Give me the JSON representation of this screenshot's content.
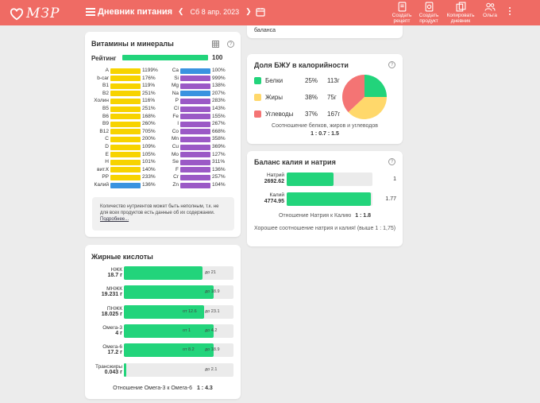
{
  "header": {
    "logo_text": "МЗР",
    "title": "Дневник питания",
    "date": "Сб 8 апр. 2023",
    "buttons": [
      {
        "label": "Создать рецепт"
      },
      {
        "label": "Создать продукт"
      },
      {
        "label": "Копировать дневник"
      },
      {
        "label": "Ольга"
      }
    ]
  },
  "colors": {
    "header": "#ef6b64",
    "green": "#22d47b",
    "yellow": "#f7d300",
    "purple": "#9b59c6",
    "blue": "#3a93e0"
  },
  "vitamins": {
    "title": "Витамины и минералы",
    "rating_label": "Рейтинг",
    "rating_value": "100",
    "left": [
      {
        "name": "A",
        "value": "1199%",
        "pct": 100,
        "color": "yellow"
      },
      {
        "name": "b-car",
        "value": "176%",
        "pct": 100,
        "color": "yellow"
      },
      {
        "name": "B1",
        "value": "119%",
        "pct": 100,
        "color": "yellow"
      },
      {
        "name": "B2",
        "value": "251%",
        "pct": 100,
        "color": "yellow"
      },
      {
        "name": "Холин",
        "value": "116%",
        "pct": 100,
        "color": "yellow"
      },
      {
        "name": "B5",
        "value": "251%",
        "pct": 100,
        "color": "yellow"
      },
      {
        "name": "B6",
        "value": "168%",
        "pct": 100,
        "color": "yellow"
      },
      {
        "name": "B9",
        "value": "260%",
        "pct": 100,
        "color": "yellow"
      },
      {
        "name": "B12",
        "value": "705%",
        "pct": 100,
        "color": "yellow"
      },
      {
        "name": "C",
        "value": "200%",
        "pct": 100,
        "color": "yellow"
      },
      {
        "name": "D",
        "value": "109%",
        "pct": 100,
        "color": "yellow"
      },
      {
        "name": "E",
        "value": "105%",
        "pct": 100,
        "color": "yellow"
      },
      {
        "name": "H",
        "value": "101%",
        "pct": 100,
        "color": "yellow"
      },
      {
        "name": "вит.К",
        "value": "140%",
        "pct": 100,
        "color": "yellow"
      },
      {
        "name": "PP",
        "value": "233%",
        "pct": 100,
        "color": "yellow"
      },
      {
        "name": "Калий",
        "value": "136%",
        "pct": 100,
        "color": "blue"
      }
    ],
    "right": [
      {
        "name": "Ca",
        "value": "100%",
        "pct": 100,
        "color": "blue"
      },
      {
        "name": "Si",
        "value": "999%",
        "pct": 100,
        "color": "purple"
      },
      {
        "name": "Mg",
        "value": "138%",
        "pct": 100,
        "color": "purple"
      },
      {
        "name": "Na",
        "value": "207%",
        "pct": 100,
        "color": "blue"
      },
      {
        "name": "P",
        "value": "283%",
        "pct": 100,
        "color": "purple"
      },
      {
        "name": "Cl",
        "value": "143%",
        "pct": 100,
        "color": "purple"
      },
      {
        "name": "Fe",
        "value": "155%",
        "pct": 100,
        "color": "purple"
      },
      {
        "name": "I",
        "value": "267%",
        "pct": 100,
        "color": "purple"
      },
      {
        "name": "Co",
        "value": "668%",
        "pct": 100,
        "color": "purple"
      },
      {
        "name": "Mn",
        "value": "358%",
        "pct": 100,
        "color": "purple"
      },
      {
        "name": "Cu",
        "value": "369%",
        "pct": 100,
        "color": "purple"
      },
      {
        "name": "Mo",
        "value": "127%",
        "pct": 100,
        "color": "purple"
      },
      {
        "name": "Se",
        "value": "311%",
        "pct": 100,
        "color": "purple"
      },
      {
        "name": "F",
        "value": "136%",
        "pct": 100,
        "color": "purple"
      },
      {
        "name": "Cr",
        "value": "257%",
        "pct": 100,
        "color": "purple"
      },
      {
        "name": "Zn",
        "value": "104%",
        "pct": 100,
        "color": "purple"
      }
    ],
    "note": "Количество нутриентов может быть неполным, т.к. не для всех продуктов есть данные об их содержании.",
    "note_link": "Подробнее..."
  },
  "fatty": {
    "title": "Жирные кислоты",
    "rows": [
      {
        "name": "НЖК",
        "value": "18.7 г",
        "fill": 0.72,
        "from": "",
        "to": "до 21"
      },
      {
        "name": "МНЖК",
        "value": "19.231 г",
        "fill": 0.82,
        "from": "",
        "to": "до 18.9"
      },
      {
        "name": "ПНЖК",
        "value": "18.025 г",
        "fill": 0.73,
        "from": "от 12.6",
        "to": "до 23.1"
      },
      {
        "name": "Омега-3",
        "value": "4 г",
        "fill": 0.82,
        "from": "от 1",
        "to": "до 4.2"
      },
      {
        "name": "Омега-6",
        "value": "17.2 г",
        "fill": 0.82,
        "from": "от 8.2",
        "to": "до 18.9"
      },
      {
        "name": "Трансжиры",
        "value": "0.043 г",
        "fill": 0.02,
        "from": "",
        "to": "до 2.1"
      }
    ],
    "footer_text": "Отношение Омега-3 к Омега-6",
    "footer_value": "1 : 4.3"
  },
  "top_snippet": "баланса",
  "bju": {
    "title": "Доля БЖУ в калорийности",
    "items": [
      {
        "name": "Белки",
        "pct": "25%",
        "grams": "113г",
        "value": 25,
        "color": "#22d47b"
      },
      {
        "name": "Жиры",
        "pct": "38%",
        "grams": "75г",
        "value": 38,
        "color": "#ffd86b"
      },
      {
        "name": "Углеводы",
        "pct": "37%",
        "grams": "167г",
        "value": 37,
        "color": "#f47474"
      }
    ],
    "ratio_text": "Соотношение белков, жиров и углеводов",
    "ratio_value": "1 : 0.7 : 1.5"
  },
  "kna": {
    "title": "Баланс калия и натрия",
    "rows": [
      {
        "name": "Натрий",
        "value": "2692.62",
        "fill": 0.55,
        "ratio": "1"
      },
      {
        "name": "Калий",
        "value": "4774.95",
        "fill": 0.98,
        "ratio": "1.77"
      }
    ],
    "ratio_text": "Отношение Натрия к Калию",
    "ratio_value": "1 : 1.8",
    "comment": "Хорошее соотношение натрия и калия! (выше 1 : 1,75)"
  }
}
